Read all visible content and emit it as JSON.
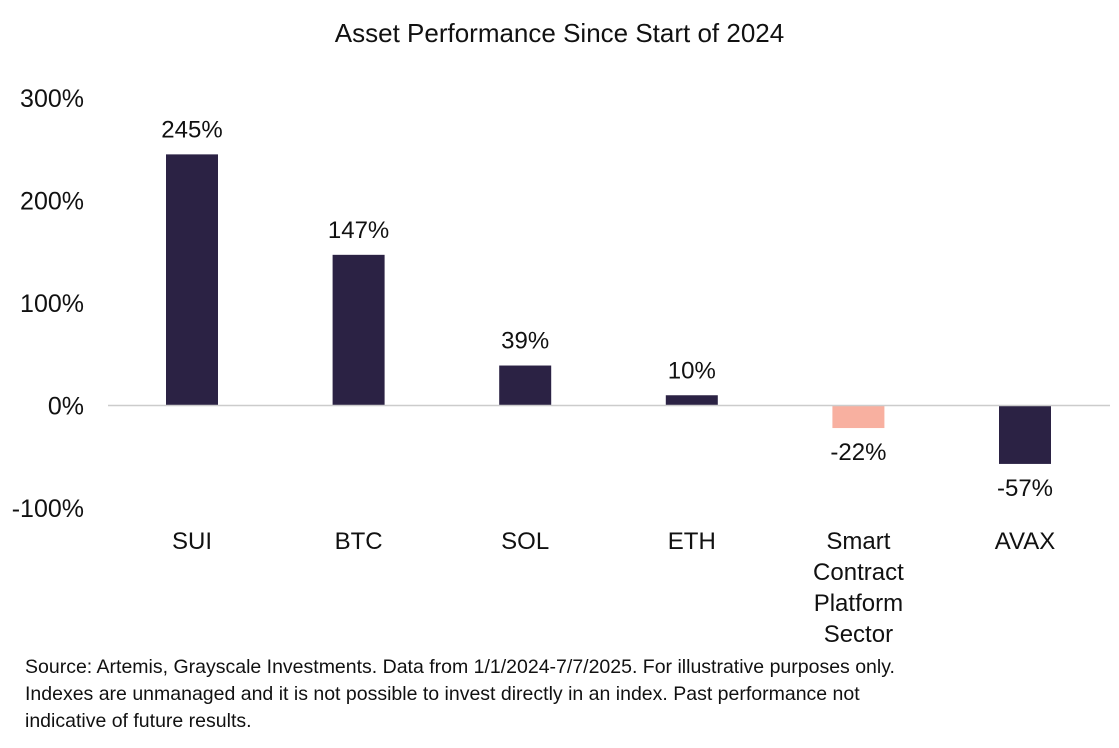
{
  "chart_data": {
    "type": "bar",
    "title": "Asset Performance Since Start of 2024",
    "categories": [
      "SUI",
      "BTC",
      "SOL",
      "ETH",
      "Smart Contract Platform Sector",
      "AVAX"
    ],
    "category_lines": [
      [
        "SUI"
      ],
      [
        "BTC"
      ],
      [
        "SOL"
      ],
      [
        "ETH"
      ],
      [
        "Smart",
        "Contract",
        "Platform",
        "Sector"
      ],
      [
        "AVAX"
      ]
    ],
    "values": [
      245,
      147,
      39,
      10,
      -22,
      -57
    ],
    "value_labels": [
      "245%",
      "147%",
      "39%",
      "10%",
      "-22%",
      "-57%"
    ],
    "bar_colors": [
      "#2b2244",
      "#2b2244",
      "#2b2244",
      "#2b2244",
      "#f8b0a0",
      "#2b2244"
    ],
    "ylim": [
      -100,
      300
    ],
    "yticks": [
      300,
      200,
      100,
      0,
      -100
    ],
    "ytick_labels": [
      "300%",
      "200%",
      "100%",
      "0%",
      "-100%"
    ],
    "xlabel": "",
    "ylabel": "",
    "grid": false,
    "zero_line_color": "#cccccc"
  },
  "footnote": {
    "lines": [
      "Source: Artemis, Grayscale Investments. Data from 1/1/2024-7/7/2025. For illustrative purposes only.",
      "Indexes are unmanaged and it is not possible to invest directly in an index. Past performance not",
      "indicative of future results."
    ]
  }
}
